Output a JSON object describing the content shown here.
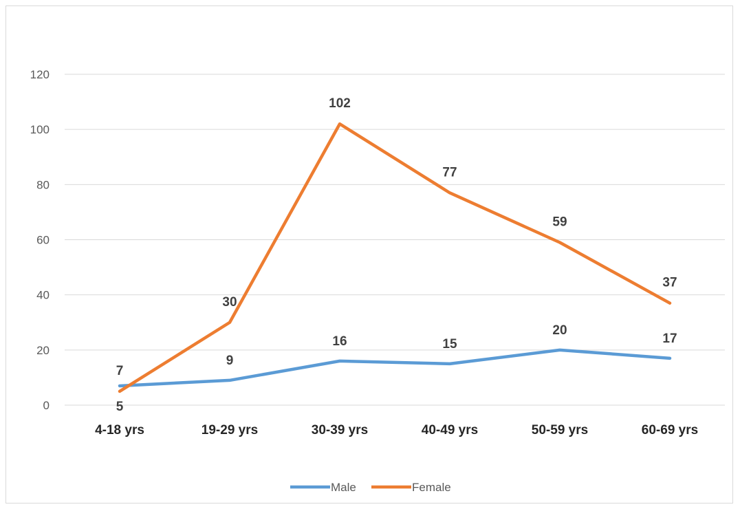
{
  "chart_data": {
    "type": "line",
    "title": "",
    "xlabel": "",
    "ylabel": "",
    "categories": [
      "4-18 yrs",
      "19-29 yrs",
      "30-39 yrs",
      "40-49 yrs",
      "50-59 yrs",
      "60-69  yrs"
    ],
    "y_ticks": [
      "0",
      "20",
      "40",
      "60",
      "80",
      "100",
      "120"
    ],
    "ylim": [
      0,
      120
    ],
    "grid": "horizontal",
    "legend_position": "bottom",
    "series": [
      {
        "name": "Male",
        "color": "#5b9bd5",
        "values": [
          7,
          9,
          16,
          15,
          20,
          17
        ]
      },
      {
        "name": "Female",
        "color": "#ed7d31",
        "values": [
          5,
          30,
          102,
          77,
          59,
          37
        ]
      }
    ]
  }
}
